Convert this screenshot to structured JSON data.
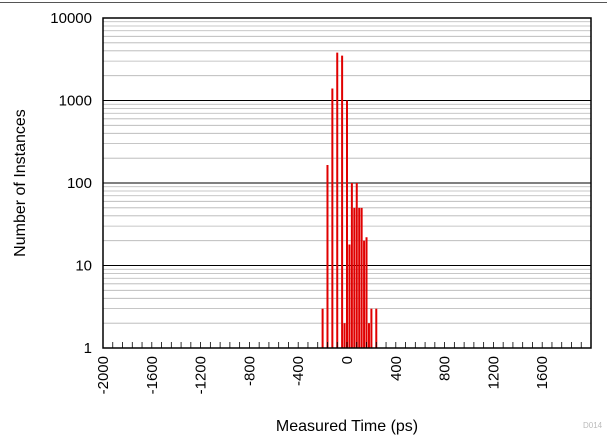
{
  "chart_data": {
    "type": "bar",
    "title": "",
    "xlabel": "Measured Time (ps)",
    "ylabel": "Number of Instances",
    "y_scale": "log",
    "ylim": [
      1,
      10000
    ],
    "xlim": [
      -2000,
      2000
    ],
    "y_ticks": [
      "1",
      "10",
      "100",
      "1000",
      "10000"
    ],
    "x_ticks": [
      "-2000",
      "-1600",
      "-1200",
      "-800",
      "-400",
      "0",
      "400",
      "800",
      "1200",
      "1600"
    ],
    "bar_color": "#e00000",
    "grid": true,
    "figure_code": "D014",
    "x": [
      -200,
      -160,
      -120,
      -80,
      -40,
      0,
      40,
      80,
      120,
      160,
      200,
      240
    ],
    "values": [
      3,
      165,
      1400,
      3800,
      3500,
      1000,
      100,
      100,
      50,
      22,
      3,
      3
    ],
    "secondary_bars": {
      "x": [
        -20,
        20,
        60,
        100,
        140,
        180
      ],
      "values": [
        2,
        18,
        50,
        50,
        20,
        2
      ]
    }
  }
}
